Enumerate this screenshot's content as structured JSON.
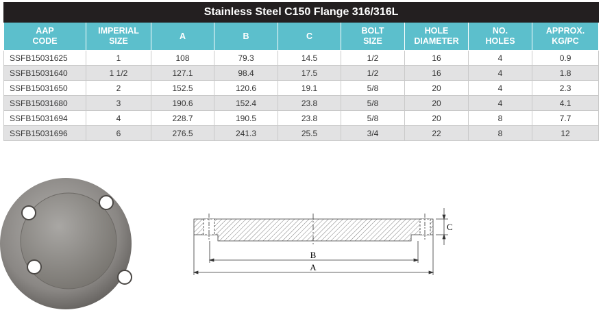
{
  "table": {
    "title": "Stainless Steel C150 Flange 316/316L",
    "columns": [
      [
        "AAP",
        "CODE"
      ],
      [
        "IMPERIAL",
        "SIZE"
      ],
      [
        "A"
      ],
      [
        "B"
      ],
      [
        "C"
      ],
      [
        "BOLT",
        "SIZE"
      ],
      [
        "HOLE",
        "DIAMETER"
      ],
      [
        "NO.",
        "HOLES"
      ],
      [
        "APPROX.",
        "KG/PC"
      ]
    ],
    "rows": [
      [
        "SSFB15031625",
        "1",
        "108",
        "79.3",
        "14.5",
        "1/2",
        "16",
        "4",
        "0.9"
      ],
      [
        "SSFB15031640",
        "1 1/2",
        "127.1",
        "98.4",
        "17.5",
        "1/2",
        "16",
        "4",
        "1.8"
      ],
      [
        "SSFB15031650",
        "2",
        "152.5",
        "120.6",
        "19.1",
        "5/8",
        "20",
        "4",
        "2.3"
      ],
      [
        "SSFB15031680",
        "3",
        "190.6",
        "152.4",
        "23.8",
        "5/8",
        "20",
        "4",
        "4.1"
      ],
      [
        "SSFB15031694",
        "4",
        "228.7",
        "190.5",
        "23.8",
        "5/8",
        "20",
        "8",
        "7.7"
      ],
      [
        "SSFB15031696",
        "6",
        "276.5",
        "241.3",
        "25.5",
        "3/4",
        "22",
        "8",
        "12"
      ]
    ]
  },
  "diagram": {
    "labels": {
      "a": "A",
      "b": "B",
      "c": "C"
    }
  }
}
